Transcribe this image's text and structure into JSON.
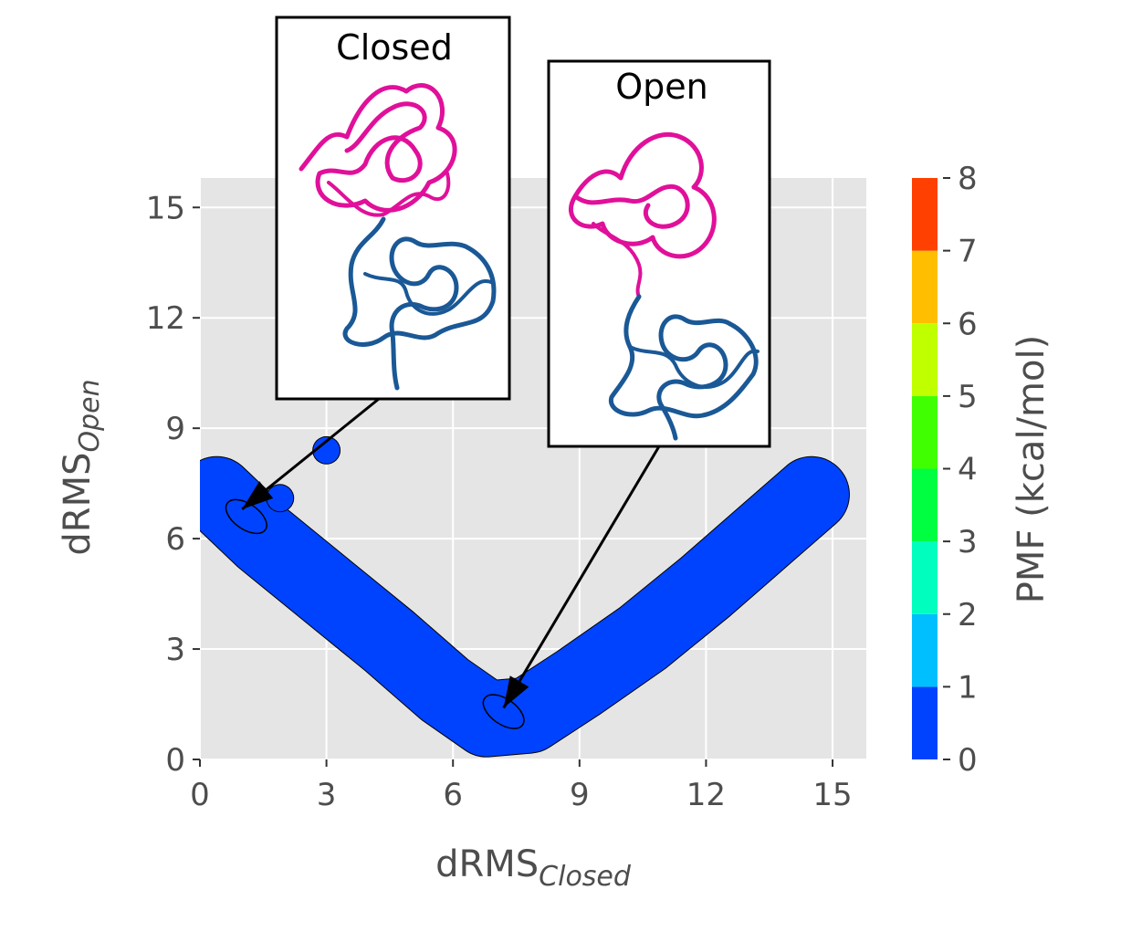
{
  "chart_data": {
    "type": "contour",
    "xlabel": "dRMS",
    "xlabel_sub": "Closed",
    "ylabel": "dRMS",
    "ylabel_sub": "Open",
    "xlim": [
      0,
      15.8
    ],
    "ylim": [
      0,
      15.8
    ],
    "x_ticks": [
      0,
      3,
      6,
      9,
      12,
      15
    ],
    "y_ticks": [
      0,
      3,
      6,
      9,
      12,
      15
    ],
    "grid": true,
    "background": "#e5e5e5",
    "colorbar": {
      "label": "PMF (kcal/mol)",
      "ticks": [
        0,
        1,
        2,
        3,
        4,
        5,
        6,
        7,
        8
      ],
      "levels": [
        {
          "from": 0,
          "to": 1,
          "color": "#0043ff"
        },
        {
          "from": 1,
          "to": 2,
          "color": "#00bfff"
        },
        {
          "from": 2,
          "to": 3,
          "color": "#00ffbf"
        },
        {
          "from": 3,
          "to": 4,
          "color": "#00ff40"
        },
        {
          "from": 4,
          "to": 5,
          "color": "#40ff00"
        },
        {
          "from": 5,
          "to": 6,
          "color": "#bfff00"
        },
        {
          "from": 6,
          "to": 7,
          "color": "#ffbf00"
        },
        {
          "from": 7,
          "to": 8,
          "color": "#ff4000"
        }
      ]
    },
    "basin_path": [
      [
        0.4,
        7.2
      ],
      [
        1.5,
        6.0
      ],
      [
        3.0,
        4.6
      ],
      [
        4.5,
        3.2
      ],
      [
        5.8,
        1.9
      ],
      [
        6.8,
        1.1
      ],
      [
        7.8,
        1.2
      ],
      [
        9.0,
        2.1
      ],
      [
        10.5,
        3.3
      ],
      [
        12.0,
        4.7
      ],
      [
        13.5,
        6.2
      ],
      [
        14.5,
        7.2
      ]
    ],
    "extra_basins": [
      {
        "x": 3.0,
        "y": 8.4
      },
      {
        "x": 1.9,
        "y": 7.1
      }
    ],
    "minima": [
      {
        "x": 1.1,
        "y": 6.6,
        "pmf": 0.0
      },
      {
        "x": 7.2,
        "y": 1.3,
        "pmf": 0.5
      }
    ],
    "annotations": [
      {
        "label": "Closed",
        "points_to": [
          1.0,
          6.8
        ]
      },
      {
        "label": "Open",
        "points_to": [
          7.2,
          1.4
        ]
      }
    ],
    "structure_colors": {
      "upper_domain": "#e0109a",
      "lower_domain": "#1a5896"
    }
  }
}
